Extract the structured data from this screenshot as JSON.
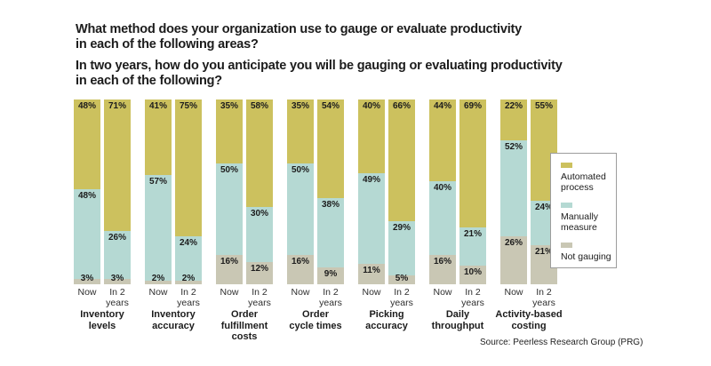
{
  "questions": {
    "q1": {
      "line1": "What method does your organization use to gauge or evaluate productivity",
      "line2": "in each of the following areas?"
    },
    "q2": {
      "line1": "In two years, how do you anticipate you will be gauging or evaluating productivity",
      "line2": "in each of the following?"
    }
  },
  "source": "Source: Peerless Research Group (PRG)",
  "chart_data": {
    "type": "bar",
    "stacked": true,
    "unit": "%",
    "title": "What method does your organization use to gauge or evaluate productivity in each of the following areas?",
    "subtitle": "In two years, how do you anticipate you will be gauging or evaluating productivity in each of the following?",
    "legend_position": "right",
    "bar_labels": [
      [
        "Now"
      ],
      [
        "In 2",
        "years"
      ]
    ],
    "series": [
      {
        "key": "automated-process",
        "name": "Automated process",
        "label_lines": [
          "Automated",
          "process"
        ],
        "color": "#ccc15e"
      },
      {
        "key": "manually-measure",
        "name": "Manually measure",
        "label_lines": [
          "Manually",
          "measure"
        ],
        "color": "#b5d9d3"
      },
      {
        "key": "not-gauging",
        "name": "Not gauging",
        "label_lines": [
          "Not gauging"
        ],
        "color": "#c9c7b4"
      }
    ],
    "categories": [
      "Inventory levels",
      "Inventory accuracy",
      "Order fulfillment costs",
      "Order cycle times",
      "Picking accuracy",
      "Daily throughput",
      "Activity-based costing"
    ],
    "category_lines": [
      [
        "Inventory",
        "levels"
      ],
      [
        "Inventory",
        "accuracy"
      ],
      [
        "Order",
        "fulfillment",
        "costs"
      ],
      [
        "Order",
        "cycle times"
      ],
      [
        "Picking",
        "accuracy"
      ],
      [
        "Daily",
        "throughput"
      ],
      [
        "Activity-based",
        "costing"
      ]
    ],
    "values": [
      {
        "category": "Inventory levels",
        "now": [
          48,
          48,
          3
        ],
        "in_2_years": [
          71,
          26,
          3
        ]
      },
      {
        "category": "Inventory accuracy",
        "now": [
          41,
          57,
          2
        ],
        "in_2_years": [
          75,
          24,
          2
        ]
      },
      {
        "category": "Order fulfillment costs",
        "now": [
          35,
          50,
          16
        ],
        "in_2_years": [
          58,
          30,
          12
        ]
      },
      {
        "category": "Order cycle times",
        "now": [
          35,
          50,
          16
        ],
        "in_2_years": [
          54,
          38,
          9
        ]
      },
      {
        "category": "Picking accuracy",
        "now": [
          40,
          49,
          11
        ],
        "in_2_years": [
          66,
          29,
          5
        ]
      },
      {
        "category": "Daily throughput",
        "now": [
          44,
          40,
          16
        ],
        "in_2_years": [
          69,
          21,
          10
        ]
      },
      {
        "category": "Activity-based costing",
        "now": [
          22,
          52,
          26
        ],
        "in_2_years": [
          55,
          24,
          21
        ]
      }
    ]
  }
}
